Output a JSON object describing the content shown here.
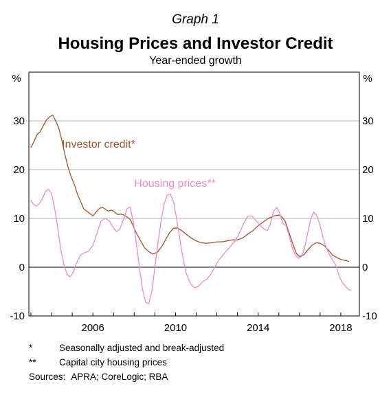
{
  "graph_label": "Graph 1",
  "title": "Housing Prices and Investor Credit",
  "subtitle": "Year-ended growth",
  "notes": [
    {
      "mark": "*",
      "text": "Seasonally adjusted and break-adjusted"
    },
    {
      "mark": "**",
      "text": "Capital city housing prices"
    }
  ],
  "sources_label": "Sources:",
  "sources_text": "APRA; CoreLogic; RBA",
  "chart_data": {
    "type": "line",
    "title": "Housing Prices and Investor Credit",
    "subtitle": "Year-ended growth",
    "y_unit_left": "%",
    "y_unit_right": "%",
    "ylim": [
      -10,
      40
    ],
    "yticks": [
      -10,
      0,
      10,
      20,
      30
    ],
    "xlim": [
      2002.9,
      2018.9
    ],
    "xticks": [
      2006,
      2010,
      2014,
      2018
    ],
    "grid": true,
    "legend": "inline labels",
    "series": [
      {
        "name": "Investor credit*",
        "color": "#a5522a",
        "label_pos": [
          2004.5,
          24.5
        ],
        "points": [
          [
            2003.0,
            24.5
          ],
          [
            2003.15,
            25.8
          ],
          [
            2003.3,
            27.2
          ],
          [
            2003.45,
            27.8
          ],
          [
            2003.6,
            29.0
          ],
          [
            2003.75,
            30.2
          ],
          [
            2003.9,
            30.8
          ],
          [
            2004.05,
            31.2
          ],
          [
            2004.2,
            30.0
          ],
          [
            2004.35,
            28.5
          ],
          [
            2004.5,
            26.0
          ],
          [
            2004.65,
            23.0
          ],
          [
            2004.8,
            20.5
          ],
          [
            2004.95,
            18.5
          ],
          [
            2005.1,
            17.0
          ],
          [
            2005.25,
            15.0
          ],
          [
            2005.4,
            13.5
          ],
          [
            2005.55,
            12.0
          ],
          [
            2005.7,
            11.5
          ],
          [
            2005.85,
            11.0
          ],
          [
            2006.0,
            10.5
          ],
          [
            2006.15,
            11.3
          ],
          [
            2006.3,
            12.0
          ],
          [
            2006.45,
            12.3
          ],
          [
            2006.6,
            11.9
          ],
          [
            2006.75,
            11.5
          ],
          [
            2006.9,
            11.7
          ],
          [
            2007.05,
            11.3
          ],
          [
            2007.2,
            10.8
          ],
          [
            2007.35,
            10.9
          ],
          [
            2007.5,
            10.7
          ],
          [
            2007.65,
            10.3
          ],
          [
            2007.8,
            9.8
          ],
          [
            2007.95,
            8.5
          ],
          [
            2008.1,
            7.0
          ],
          [
            2008.3,
            5.5
          ],
          [
            2008.5,
            4.0
          ],
          [
            2008.7,
            3.2
          ],
          [
            2008.9,
            2.7
          ],
          [
            2009.1,
            3.0
          ],
          [
            2009.3,
            4.0
          ],
          [
            2009.5,
            5.5
          ],
          [
            2009.7,
            7.0
          ],
          [
            2009.9,
            8.0
          ],
          [
            2010.1,
            8.0
          ],
          [
            2010.3,
            7.5
          ],
          [
            2010.5,
            6.8
          ],
          [
            2010.75,
            6.0
          ],
          [
            2011.0,
            5.4
          ],
          [
            2011.25,
            5.0
          ],
          [
            2011.5,
            4.9
          ],
          [
            2011.75,
            5.0
          ],
          [
            2012.0,
            5.2
          ],
          [
            2012.25,
            5.2
          ],
          [
            2012.5,
            5.4
          ],
          [
            2012.75,
            5.6
          ],
          [
            2013.0,
            5.6
          ],
          [
            2013.25,
            6.0
          ],
          [
            2013.5,
            6.8
          ],
          [
            2013.75,
            7.5
          ],
          [
            2014.0,
            8.5
          ],
          [
            2014.25,
            9.3
          ],
          [
            2014.5,
            10.0
          ],
          [
            2014.75,
            10.5
          ],
          [
            2015.0,
            10.7
          ],
          [
            2015.15,
            10.3
          ],
          [
            2015.3,
            9.5
          ],
          [
            2015.5,
            7.0
          ],
          [
            2015.7,
            4.5
          ],
          [
            2015.85,
            2.8
          ],
          [
            2016.0,
            2.2
          ],
          [
            2016.2,
            2.5
          ],
          [
            2016.4,
            3.5
          ],
          [
            2016.6,
            4.5
          ],
          [
            2016.8,
            5.0
          ],
          [
            2017.0,
            4.9
          ],
          [
            2017.2,
            4.4
          ],
          [
            2017.4,
            3.5
          ],
          [
            2017.6,
            2.5
          ],
          [
            2017.8,
            2.0
          ],
          [
            2018.0,
            1.6
          ],
          [
            2018.2,
            1.4
          ],
          [
            2018.4,
            1.2
          ]
        ]
      },
      {
        "name": "Housing prices**",
        "color": "#f088d0",
        "label_pos": [
          2008.0,
          16.5
        ],
        "points": [
          [
            2003.0,
            13.8
          ],
          [
            2003.1,
            13.0
          ],
          [
            2003.25,
            12.5
          ],
          [
            2003.4,
            13.0
          ],
          [
            2003.55,
            14.0
          ],
          [
            2003.7,
            15.5
          ],
          [
            2003.85,
            16.0
          ],
          [
            2004.0,
            15.0
          ],
          [
            2004.15,
            12.0
          ],
          [
            2004.3,
            8.0
          ],
          [
            2004.45,
            3.5
          ],
          [
            2004.6,
            0.5
          ],
          [
            2004.75,
            -1.5
          ],
          [
            2004.9,
            -2.0
          ],
          [
            2005.05,
            -1.0
          ],
          [
            2005.2,
            0.8
          ],
          [
            2005.4,
            2.5
          ],
          [
            2005.6,
            3.0
          ],
          [
            2005.8,
            3.3
          ],
          [
            2006.0,
            4.5
          ],
          [
            2006.2,
            7.0
          ],
          [
            2006.4,
            9.5
          ],
          [
            2006.6,
            10.0
          ],
          [
            2006.8,
            9.5
          ],
          [
            2007.0,
            8.0
          ],
          [
            2007.15,
            7.3
          ],
          [
            2007.3,
            7.8
          ],
          [
            2007.5,
            10.0
          ],
          [
            2007.65,
            12.0
          ],
          [
            2007.8,
            12.3
          ],
          [
            2007.95,
            9.5
          ],
          [
            2008.1,
            5.0
          ],
          [
            2008.25,
            0.0
          ],
          [
            2008.4,
            -4.5
          ],
          [
            2008.55,
            -7.2
          ],
          [
            2008.7,
            -7.5
          ],
          [
            2008.85,
            -5.0
          ],
          [
            2009.0,
            0.0
          ],
          [
            2009.15,
            5.0
          ],
          [
            2009.3,
            9.5
          ],
          [
            2009.45,
            13.0
          ],
          [
            2009.6,
            14.8
          ],
          [
            2009.75,
            15.0
          ],
          [
            2009.9,
            13.5
          ],
          [
            2010.05,
            10.0
          ],
          [
            2010.2,
            6.0
          ],
          [
            2010.35,
            2.0
          ],
          [
            2010.5,
            -1.0
          ],
          [
            2010.7,
            -3.2
          ],
          [
            2010.9,
            -4.2
          ],
          [
            2011.1,
            -4.0
          ],
          [
            2011.3,
            -3.0
          ],
          [
            2011.5,
            -2.5
          ],
          [
            2011.7,
            -1.5
          ],
          [
            2011.9,
            0.0
          ],
          [
            2012.1,
            1.5
          ],
          [
            2012.3,
            2.5
          ],
          [
            2012.5,
            3.5
          ],
          [
            2012.7,
            4.5
          ],
          [
            2012.9,
            5.5
          ],
          [
            2013.1,
            7.0
          ],
          [
            2013.3,
            9.0
          ],
          [
            2013.5,
            10.5
          ],
          [
            2013.7,
            10.5
          ],
          [
            2013.9,
            9.5
          ],
          [
            2014.1,
            8.5
          ],
          [
            2014.3,
            7.8
          ],
          [
            2014.45,
            7.5
          ],
          [
            2014.6,
            9.0
          ],
          [
            2014.75,
            11.5
          ],
          [
            2014.9,
            12.3
          ],
          [
            2015.05,
            11.0
          ],
          [
            2015.2,
            9.0
          ],
          [
            2015.35,
            8.5
          ],
          [
            2015.5,
            6.5
          ],
          [
            2015.65,
            4.0
          ],
          [
            2015.8,
            2.5
          ],
          [
            2015.95,
            1.8
          ],
          [
            2016.1,
            2.2
          ],
          [
            2016.25,
            4.0
          ],
          [
            2016.4,
            7.0
          ],
          [
            2016.55,
            10.0
          ],
          [
            2016.7,
            11.3
          ],
          [
            2016.85,
            10.5
          ],
          [
            2017.0,
            8.5
          ],
          [
            2017.15,
            6.0
          ],
          [
            2017.3,
            4.0
          ],
          [
            2017.45,
            2.5
          ],
          [
            2017.6,
            1.5
          ],
          [
            2017.75,
            0.5
          ],
          [
            2017.9,
            -1.5
          ],
          [
            2018.05,
            -3.0
          ],
          [
            2018.2,
            -3.8
          ],
          [
            2018.35,
            -4.5
          ],
          [
            2018.5,
            -4.8
          ]
        ]
      }
    ]
  }
}
